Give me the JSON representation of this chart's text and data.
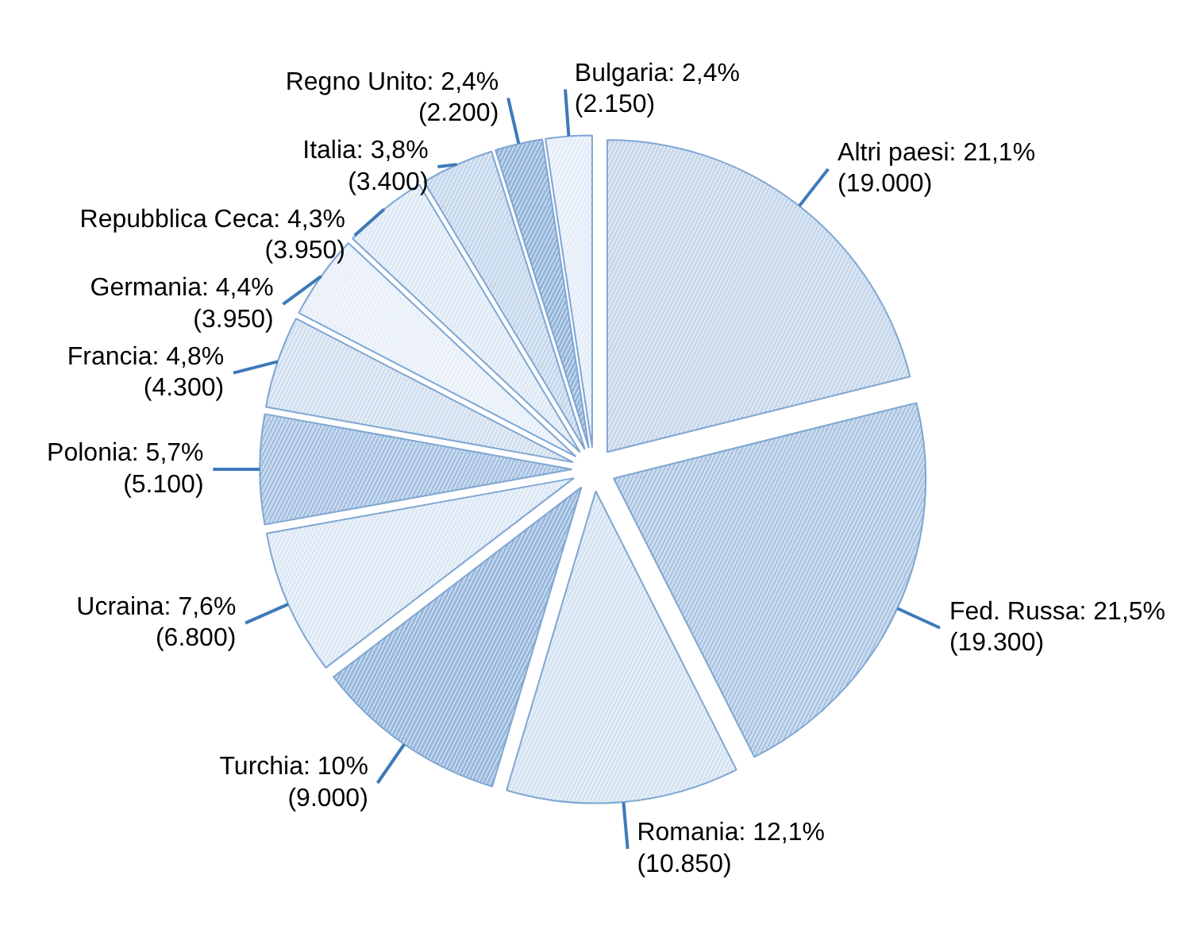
{
  "chart_data": {
    "type": "pie",
    "categories": [
      "Altri paesi",
      "Fed. Russa",
      "Romania",
      "Turchia",
      "Ucraina",
      "Polonia",
      "Francia",
      "Germania",
      "Repubblica Ceca",
      "Italia",
      "Regno Unito",
      "Bulgaria"
    ],
    "values": [
      19000,
      19300,
      10850,
      9000,
      6800,
      5100,
      4300,
      3950,
      3950,
      3400,
      2200,
      2150
    ],
    "value_labels": [
      "21,1%\n(19.000)",
      "21,5%\n(19.300)",
      "12,1%\n(10.850)",
      "10%\n(9.000)",
      "7,6%\n(6.800)",
      "5,7%\n(5.100)",
      "4,8%\n(4.300)",
      "4,4%\n(3.950)",
      "4,3%\n(3.950)",
      "3,8%\n(3.400)",
      "2,4%\n(2.200)",
      "2,4%\n(2.150)"
    ],
    "colors": [
      "#c3d5ea",
      "#a9c4e2",
      "#d3e2f1",
      "#93b5dc",
      "#dbe7f4",
      "#a3c0e0",
      "#cfdeef",
      "#e6eef8",
      "#dde8f5",
      "#c2d5eb",
      "#8fb2da",
      "#e3ecf7"
    ]
  }
}
